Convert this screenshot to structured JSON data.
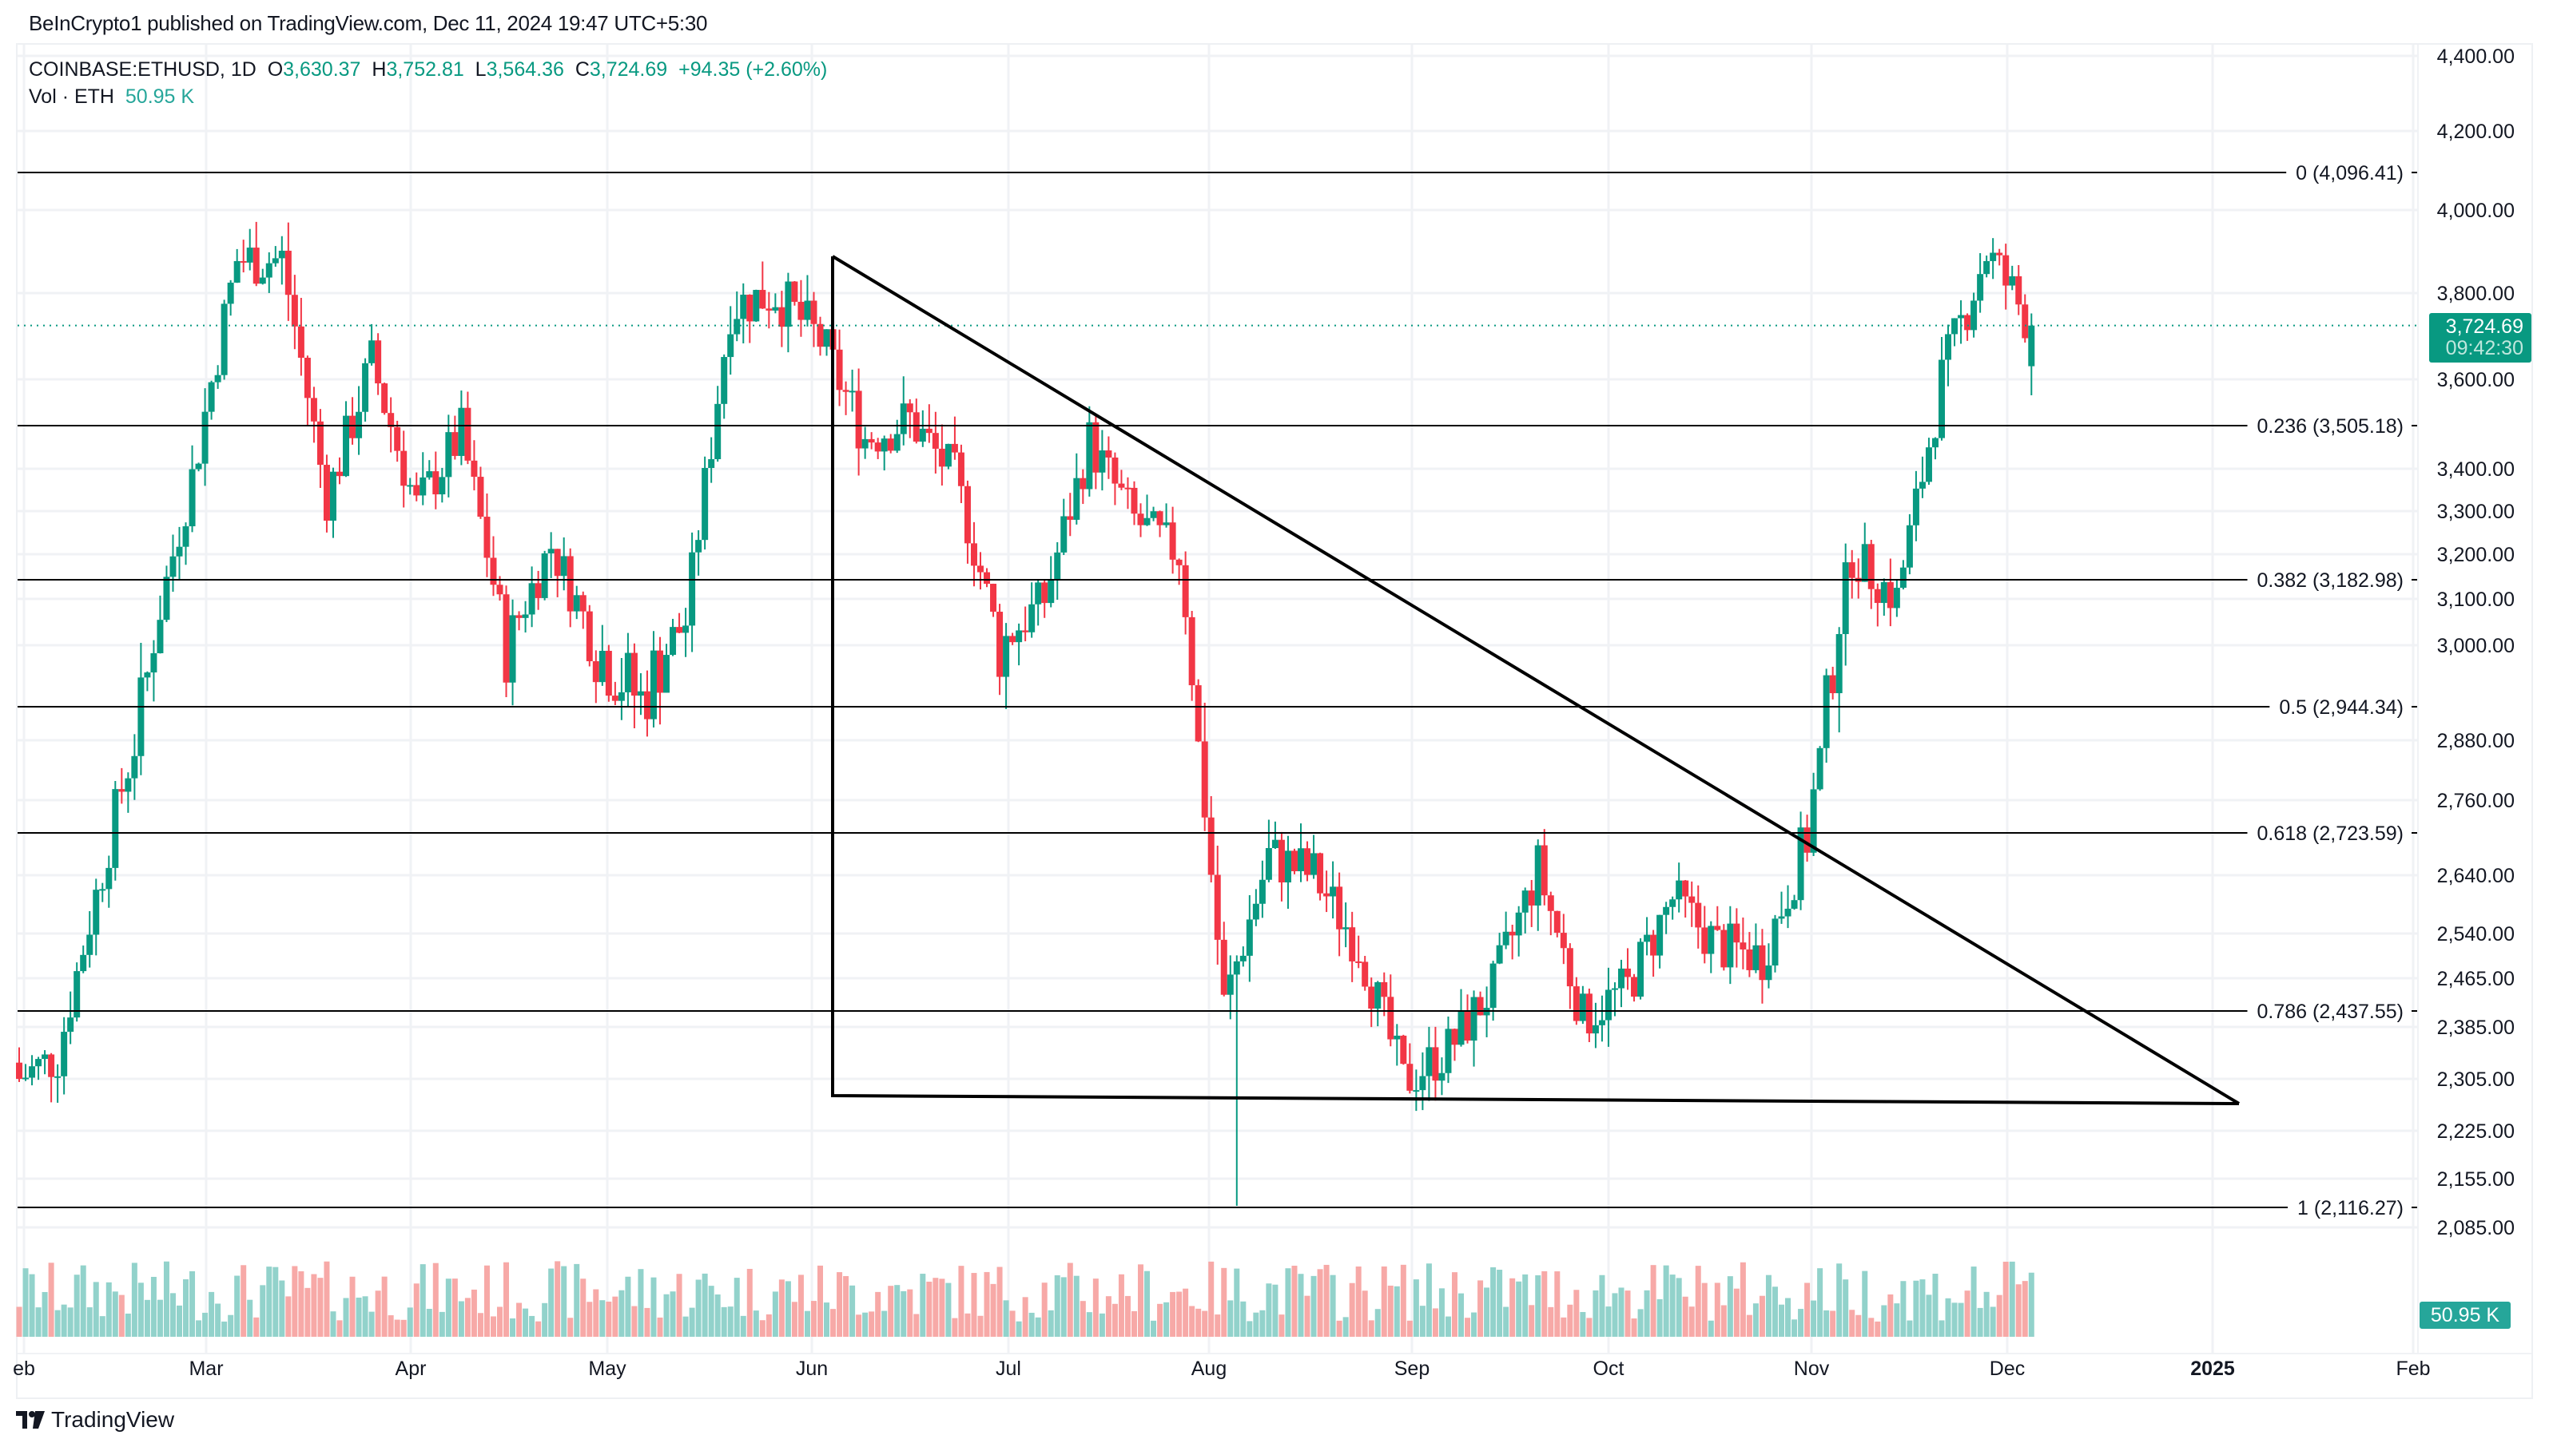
{
  "header": {
    "published": "BeInCrypto1 published on TradingView.com, Dec 11, 2024 19:47 UTC+5:30"
  },
  "legend": {
    "symbol": "COINBASE:ETHUSD, 1D",
    "o_label": "O",
    "o_value": "3,630.37",
    "h_label": "H",
    "h_value": "3,752.81",
    "l_label": "L",
    "l_value": "3,564.36",
    "c_label": "C",
    "c_value": "3,724.69",
    "change": "+94.35 (+2.60%)",
    "vol_label": "Vol · ETH",
    "vol_value": "50.95 K"
  },
  "price_tag": {
    "price": "3,724.69",
    "countdown": "09:42:30"
  },
  "vol_tag": {
    "value": "50.95 K"
  },
  "logo": {
    "text": "TradingView"
  },
  "colors": {
    "up": "#089981",
    "down": "#f23645",
    "vol_up": "#92d2cb",
    "vol_down": "#f7a9a7",
    "grid": "#f0f2f5",
    "line": "#000000"
  },
  "chart_data": {
    "type": "candlestick",
    "title": "COINBASE:ETHUSD, 1D",
    "xlabel": "",
    "ylabel": "",
    "y_ticks": [
      "4,400.00",
      "4,200.00",
      "4,000.00",
      "3,800.00",
      "3,600.00",
      "3,400.00",
      "3,300.00",
      "3,200.00",
      "3,100.00",
      "3,000.00",
      "2,880.00",
      "2,760.00",
      "2,640.00",
      "2,540.00",
      "2,465.00",
      "2,385.00",
      "2,305.00",
      "2,225.00",
      "2,155.00",
      "2,085.00"
    ],
    "x_ticks": [
      {
        "label": "eb",
        "x": 30
      },
      {
        "label": "Mar",
        "x": 258
      },
      {
        "label": "Apr",
        "x": 514
      },
      {
        "label": "May",
        "x": 760
      },
      {
        "label": "Jun",
        "x": 1016
      },
      {
        "label": "Jul",
        "x": 1262
      },
      {
        "label": "Aug",
        "x": 1513
      },
      {
        "label": "Sep",
        "x": 1767
      },
      {
        "label": "Oct",
        "x": 2013
      },
      {
        "label": "Nov",
        "x": 2267
      },
      {
        "label": "Dec",
        "x": 2512
      },
      {
        "label": "2025",
        "x": 2769,
        "bold": true
      },
      {
        "label": "Feb",
        "x": 3020
      }
    ],
    "fib_levels": [
      {
        "level": "0",
        "price": 4096.41,
        "label": "0 (4,096.41)"
      },
      {
        "level": "0.236",
        "price": 3505.18,
        "label": "0.236 (3,505.18)"
      },
      {
        "level": "0.382",
        "price": 3182.98,
        "label": "0.382 (3,182.98)"
      },
      {
        "level": "0.5",
        "price": 2944.34,
        "label": "0.5 (2,944.34)"
      },
      {
        "level": "0.618",
        "price": 2723.59,
        "label": "0.618 (2,723.59)"
      },
      {
        "level": "0.786",
        "price": 2437.55,
        "label": "0.786 (2,437.55)"
      },
      {
        "level": "1",
        "price": 2116.27,
        "label": "1 (2,116.27)"
      }
    ],
    "last": {
      "open": 3630.37,
      "high": 3752.81,
      "low": 3564.36,
      "close": 3724.69,
      "change": 94.35,
      "change_pct": 2.6,
      "volume": "50.95K"
    },
    "triangle": {
      "top_vertex": {
        "date": "2024-06-03",
        "price": 3890
      },
      "bottom_vertex": {
        "date": "2024-06-03",
        "price": 2310
      },
      "apex": {
        "date": "2024-12-29",
        "price": 2305
      }
    },
    "closes_weekly_approx": [
      {
        "week": "Feb-05",
        "close": 2340
      },
      {
        "week": "Feb-12",
        "close": 2650
      },
      {
        "week": "Feb-19",
        "close": 2960
      },
      {
        "week": "Feb-26",
        "close": 3380
      },
      {
        "week": "Mar-04",
        "close": 3880
      },
      {
        "week": "Mar-11",
        "close": 3880
      },
      {
        "week": "Mar-18",
        "close": 3330
      },
      {
        "week": "Mar-25",
        "close": 3640
      },
      {
        "week": "Apr-01",
        "close": 3310
      },
      {
        "week": "Apr-08",
        "close": 3480
      },
      {
        "week": "Apr-15",
        "close": 3000
      },
      {
        "week": "Apr-22",
        "close": 3220
      },
      {
        "week": "May-01",
        "close": 3000
      },
      {
        "week": "May-08",
        "close": 2930
      },
      {
        "week": "May-15",
        "close": 3050
      },
      {
        "week": "May-22",
        "close": 3770
      },
      {
        "week": "May-29",
        "close": 3800
      },
      {
        "week": "Jun-05",
        "close": 3690
      },
      {
        "week": "Jun-12",
        "close": 3470
      },
      {
        "week": "Jun-19",
        "close": 3510
      },
      {
        "week": "Jun-26",
        "close": 3380
      },
      {
        "week": "Jul-03",
        "close": 3000
      },
      {
        "week": "Jul-10",
        "close": 3100
      },
      {
        "week": "Jul-17",
        "close": 3460
      },
      {
        "week": "Jul-24",
        "close": 3280
      },
      {
        "week": "Jul-31",
        "close": 3200
      },
      {
        "week": "Aug-05",
        "close": 2420
      },
      {
        "week": "Aug-12",
        "close": 2670
      },
      {
        "week": "Aug-19",
        "close": 2640
      },
      {
        "week": "Aug-26",
        "close": 2520
      },
      {
        "week": "Sep-02",
        "close": 2300
      },
      {
        "week": "Sep-09",
        "close": 2350
      },
      {
        "week": "Sep-16",
        "close": 2450
      },
      {
        "week": "Sep-23",
        "close": 2650
      },
      {
        "week": "Sep-30",
        "close": 2400
      },
      {
        "week": "Oct-07",
        "close": 2450
      },
      {
        "week": "Oct-14",
        "close": 2600
      },
      {
        "week": "Oct-21",
        "close": 2520
      },
      {
        "week": "Oct-28",
        "close": 2500
      },
      {
        "week": "Nov-04",
        "close": 2700
      },
      {
        "week": "Nov-11",
        "close": 3200
      },
      {
        "week": "Nov-18",
        "close": 3100
      },
      {
        "week": "Nov-25",
        "close": 3600
      },
      {
        "week": "Dec-02",
        "close": 3900
      },
      {
        "week": "Dec-09",
        "close": 3724.69
      }
    ]
  }
}
